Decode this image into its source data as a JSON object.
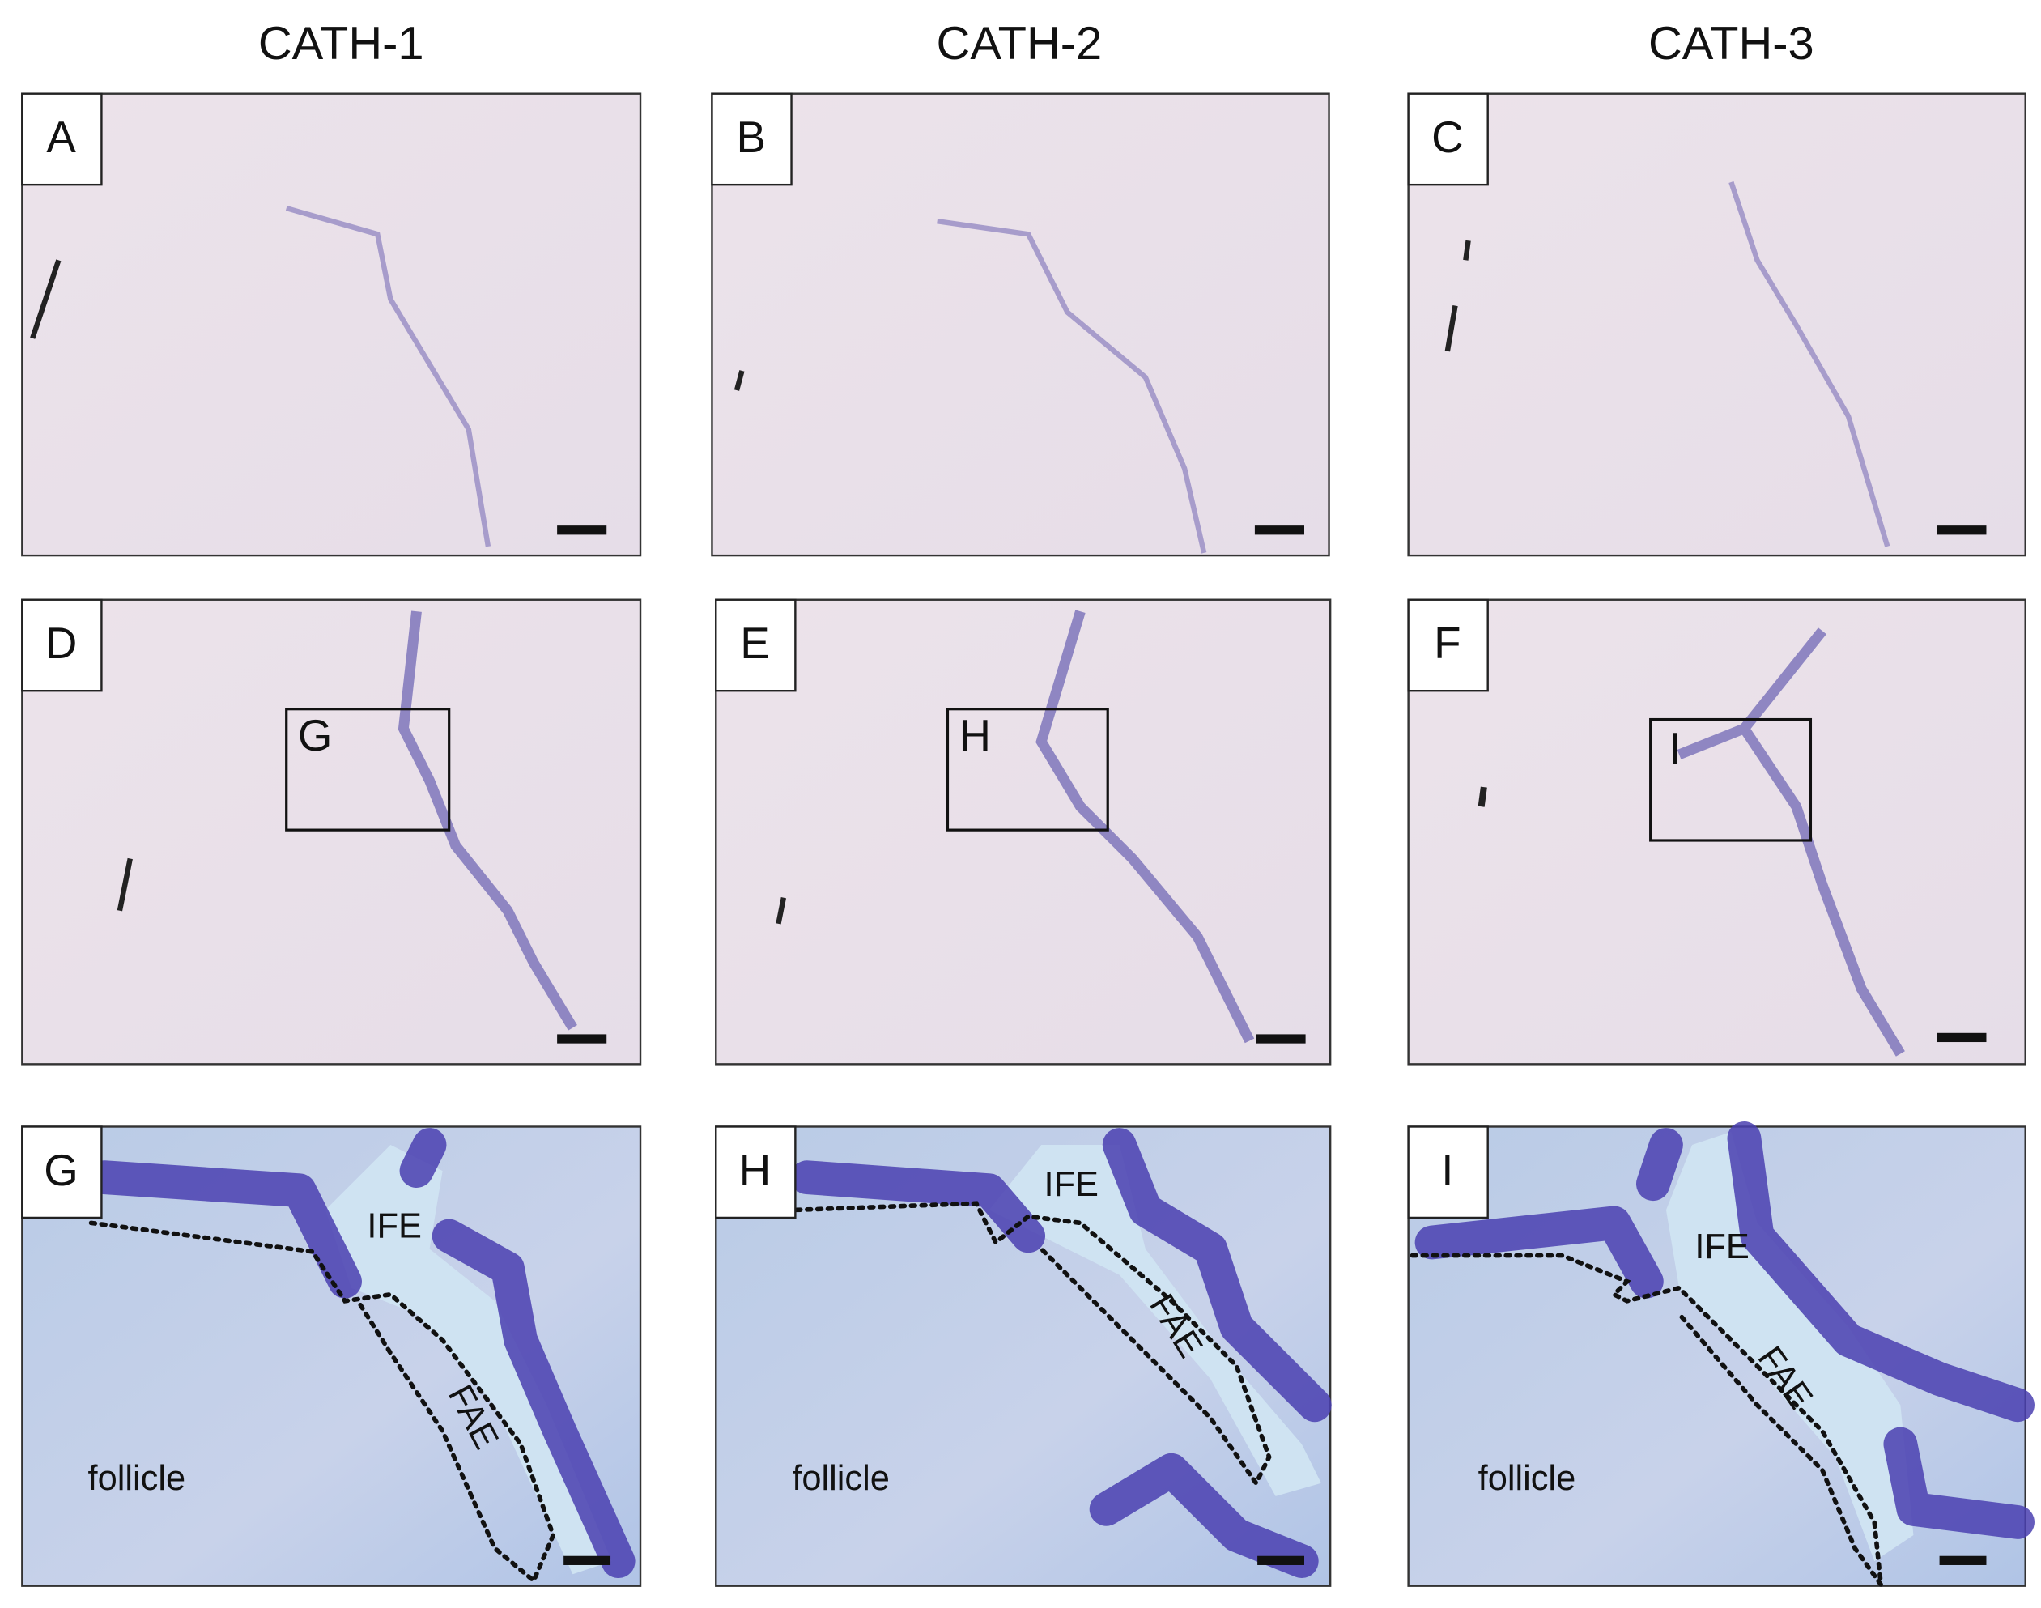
{
  "columns": [
    "CATH-1",
    "CATH-2",
    "CATH-3"
  ],
  "panels": [
    {
      "letter": "A"
    },
    {
      "letter": "B"
    },
    {
      "letter": "C"
    },
    {
      "letter": "D",
      "inset": "G"
    },
    {
      "letter": "E",
      "inset": "H"
    },
    {
      "letter": "F",
      "inset": "I"
    },
    {
      "letter": "G",
      "labels": [
        "IFE",
        "FAE",
        "follicle"
      ]
    },
    {
      "letter": "H",
      "labels": [
        "IFE",
        "FAE",
        "follicle"
      ]
    },
    {
      "letter": "I",
      "labels": [
        "IFE",
        "FAE",
        "follicle"
      ]
    }
  ]
}
